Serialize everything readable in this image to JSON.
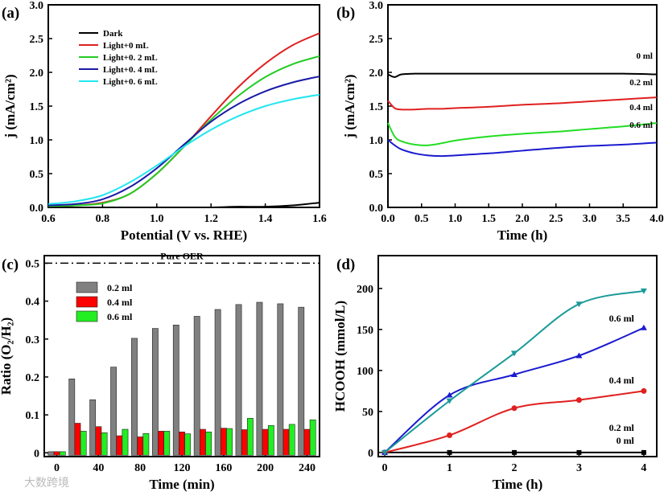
{
  "chart_data": [
    {
      "panel": "(a)",
      "type": "line",
      "xlabel": "Potential (V vs. RHE)",
      "ylabel": "j (mA/cm²)",
      "xlim": [
        0.6,
        1.6
      ],
      "ylim": [
        0,
        3.0
      ],
      "xticks": [
        0.6,
        0.8,
        1.0,
        1.2,
        1.4,
        1.6
      ],
      "yticks": [
        0.0,
        0.5,
        1.0,
        1.5,
        2.0,
        2.5,
        3.0
      ],
      "legend": "top-left",
      "x": [
        0.6,
        0.7,
        0.8,
        0.9,
        1.0,
        1.1,
        1.2,
        1.3,
        1.4,
        1.5,
        1.6
      ],
      "series": [
        {
          "name": "Dark",
          "color": "#000000",
          "values": [
            0.0,
            0.0,
            0.0,
            0.0,
            0.0,
            0.0,
            0.0,
            0.01,
            0.01,
            0.03,
            0.07
          ]
        },
        {
          "name": "Light+0  mL",
          "color": "#e02020",
          "values": [
            0.02,
            0.03,
            0.07,
            0.2,
            0.5,
            0.9,
            1.35,
            1.78,
            2.13,
            2.4,
            2.58
          ]
        },
        {
          "name": "Light+0. 2  mL",
          "color": "#22cc22",
          "values": [
            0.02,
            0.03,
            0.06,
            0.2,
            0.5,
            0.9,
            1.3,
            1.65,
            1.93,
            2.12,
            2.24
          ]
        },
        {
          "name": "Light+0. 4  mL",
          "color": "#1a1aa8",
          "values": [
            0.03,
            0.05,
            0.12,
            0.3,
            0.58,
            0.93,
            1.27,
            1.53,
            1.72,
            1.85,
            1.94
          ]
        },
        {
          "name": "Light+0. 6  mL",
          "color": "#22e6f0",
          "values": [
            0.05,
            0.09,
            0.18,
            0.37,
            0.62,
            0.9,
            1.15,
            1.35,
            1.5,
            1.6,
            1.67
          ]
        }
      ]
    },
    {
      "panel": "(b)",
      "type": "line",
      "xlabel": "Time (h)",
      "ylabel": "j (mA/cm²)",
      "xlim": [
        0,
        4.0
      ],
      "ylim": [
        0,
        3.0
      ],
      "xticks": [
        0.0,
        0.5,
        1.0,
        1.5,
        2.0,
        2.5,
        3.0,
        3.5,
        4.0
      ],
      "yticks": [
        0.0,
        0.5,
        1.0,
        1.5,
        2.0,
        2.5,
        3.0
      ],
      "x": [
        0,
        0.1,
        0.2,
        0.4,
        0.6,
        0.8,
        1.0,
        1.5,
        2.0,
        2.5,
        3.0,
        3.5,
        4.0
      ],
      "series": [
        {
          "name": "0 ml",
          "color": "#000000",
          "values": [
            1.97,
            1.93,
            1.97,
            1.98,
            1.98,
            1.98,
            1.98,
            1.98,
            1.98,
            1.98,
            1.98,
            1.98,
            1.97
          ]
        },
        {
          "name": "0.2 ml",
          "color": "#e02020",
          "values": [
            1.58,
            1.47,
            1.45,
            1.45,
            1.46,
            1.46,
            1.47,
            1.49,
            1.52,
            1.54,
            1.57,
            1.6,
            1.63
          ]
        },
        {
          "name": "0.4 ml",
          "color": "#22dd22",
          "values": [
            1.25,
            1.05,
            0.98,
            0.93,
            0.92,
            0.95,
            0.99,
            1.05,
            1.09,
            1.12,
            1.16,
            1.2,
            1.25
          ]
        },
        {
          "name": "0.6 ml",
          "color": "#1a1ad0",
          "values": [
            1.0,
            0.92,
            0.86,
            0.8,
            0.77,
            0.76,
            0.77,
            0.8,
            0.84,
            0.88,
            0.91,
            0.93,
            0.96
          ]
        }
      ]
    },
    {
      "panel": "(c)",
      "type": "bar",
      "xlabel": "Time (min)",
      "ylabel": "Ratio (O₂/H₂)",
      "ylim": [
        -0.01,
        0.52
      ],
      "categories": [
        0,
        20,
        40,
        60,
        80,
        100,
        120,
        140,
        160,
        180,
        200,
        220,
        240
      ],
      "xticks": [
        0,
        40,
        80,
        120,
        160,
        200,
        240
      ],
      "yticks": [
        0.0,
        0.1,
        0.2,
        0.3,
        0.4,
        0.5
      ],
      "reference": {
        "label": "Pure OER",
        "value": 0.5
      },
      "series": [
        {
          "name": "0.2 ml",
          "color": "#808080",
          "values": [
            0,
            0.195,
            0.14,
            0.226,
            0.302,
            0.328,
            0.337,
            0.36,
            0.378,
            0.391,
            0.397,
            0.393,
            0.384
          ]
        },
        {
          "name": "0.4 ml",
          "color": "#ff0000",
          "values": [
            0,
            0.078,
            0.069,
            0.045,
            0.042,
            0.057,
            0.055,
            0.062,
            0.065,
            0.061,
            0.062,
            0.062,
            0.062
          ]
        },
        {
          "name": "0.6 ml",
          "color": "#22ee22",
          "values": [
            0,
            0.057,
            0.053,
            0.062,
            0.051,
            0.057,
            0.05,
            0.055,
            0.064,
            0.091,
            0.072,
            0.075,
            0.087
          ]
        }
      ]
    },
    {
      "panel": "(d)",
      "type": "line",
      "xlabel": "Time (h)",
      "ylabel": "HCOOH (mmol/L)",
      "xlim": [
        -0.1,
        4.2
      ],
      "ylim": [
        -5,
        240
      ],
      "xticks": [
        0,
        1,
        2,
        3,
        4
      ],
      "yticks": [
        0,
        50,
        100,
        150,
        200
      ],
      "x": [
        0,
        1,
        2,
        3,
        4
      ],
      "series": [
        {
          "name": "0 ml",
          "color": "#000000",
          "marker": "square",
          "values": [
            0,
            0,
            0,
            0,
            0
          ]
        },
        {
          "name": "0.2 ml",
          "color": "#e02020",
          "marker": "circle",
          "values": [
            0,
            21,
            54,
            64,
            75
          ]
        },
        {
          "name": "0.4 ml",
          "color": "#1a1ad0",
          "marker": "triangle-up",
          "values": [
            0,
            70,
            95,
            118,
            152
          ]
        },
        {
          "name": "0.6 ml",
          "color": "#1a9a9a",
          "marker": "triangle-down",
          "values": [
            0,
            63,
            121,
            181,
            197
          ]
        }
      ]
    }
  ],
  "watermark": "大数跨境"
}
